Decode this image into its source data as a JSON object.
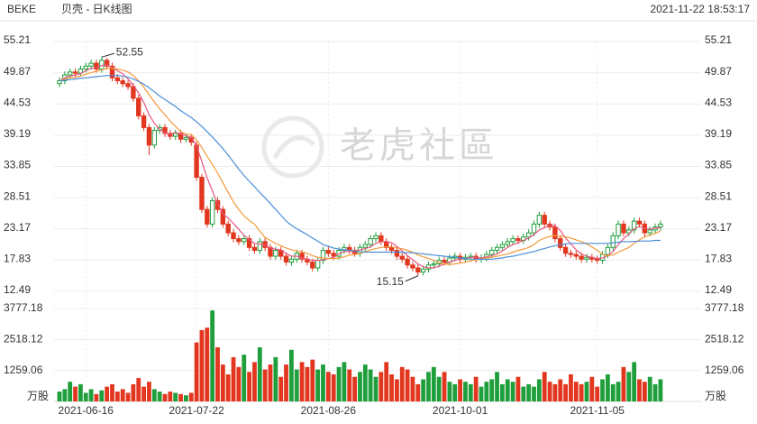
{
  "chart_data": {
    "type": "candlestick",
    "symbol": "BEKE",
    "title": "贝壳 - 日K线图",
    "timestamp": "2021-11-22 18:53:17",
    "watermark": "老虎社區",
    "categories": [
      null,
      null,
      null,
      null,
      null,
      "2021-06-16",
      null,
      null,
      null,
      null,
      null,
      null,
      null,
      null,
      null,
      null,
      null,
      null,
      null,
      null,
      null,
      null,
      null,
      null,
      null,
      null,
      "2021-07-22",
      null,
      null,
      null,
      null,
      null,
      null,
      null,
      null,
      null,
      null,
      null,
      null,
      null,
      null,
      null,
      null,
      null,
      null,
      null,
      null,
      null,
      null,
      null,
      null,
      "2021-08-26",
      null,
      null,
      null,
      null,
      null,
      null,
      null,
      null,
      null,
      null,
      null,
      null,
      null,
      null,
      null,
      null,
      null,
      null,
      null,
      null,
      null,
      null,
      null,
      null,
      "2021-10-01",
      null,
      null,
      null,
      null,
      null,
      null,
      null,
      null,
      null,
      null,
      null,
      null,
      null,
      null,
      null,
      null,
      null,
      null,
      null,
      null,
      null,
      null,
      null,
      null,
      null,
      "2021-11-05",
      null,
      null,
      null,
      null,
      null,
      null,
      null,
      null,
      null,
      null,
      null,
      null
    ],
    "open": [
      48,
      48.5,
      49.5,
      50,
      49.8,
      50.5,
      51,
      51.5,
      50.5,
      52,
      51,
      49,
      48.5,
      48,
      47.5,
      45.5,
      42.5,
      40.5,
      37.5,
      40,
      40.5,
      39.5,
      39,
      39.5,
      38.5,
      38.8,
      37.5,
      32,
      26.5,
      24,
      28,
      26.5,
      24,
      22.5,
      21.5,
      21,
      21.5,
      20,
      19.5,
      21,
      20,
      18.5,
      19.5,
      18.5,
      17.5,
      18,
      19,
      18,
      17.5,
      16.5,
      17.8,
      19.5,
      19,
      18.5,
      19.5,
      20,
      19.5,
      19,
      20,
      20.5,
      21.5,
      22,
      21,
      20,
      19.5,
      18.5,
      18,
      17,
      16.5,
      15.8,
      16.3,
      17,
      17.2,
      17.8,
      17.5,
      18.2,
      18.5,
      18,
      18.3,
      18.5,
      18,
      18.2,
      18.8,
      19.5,
      20,
      20.5,
      21,
      21.5,
      21.2,
      21.8,
      22.5,
      24,
      25.5,
      24,
      23.5,
      21.5,
      20,
      19,
      18.8,
      18.5,
      18,
      18.3,
      18,
      17.8,
      18.8,
      20,
      22,
      24,
      22.5,
      23,
      24.5,
      24,
      22.5,
      23,
      23.5
    ],
    "high": [
      49.1,
      50.1,
      50.6,
      50.6,
      51.1,
      51.6,
      52.1,
      52.1,
      52.55,
      52.4,
      51.6,
      49.6,
      49.1,
      48.6,
      48.1,
      46.1,
      43.1,
      41.1,
      40.6,
      41.1,
      41.1,
      40.1,
      40.1,
      40.1,
      39.4,
      39.4,
      38.1,
      32.6,
      27.1,
      28.6,
      28.6,
      27.1,
      24.6,
      23.1,
      22.1,
      22.1,
      22.1,
      20.6,
      21.6,
      21.6,
      20.6,
      20.1,
      20.1,
      19.1,
      18.6,
      19.6,
      19.6,
      18.6,
      18.1,
      18.4,
      20.1,
      20.1,
      19.6,
      20.1,
      20.6,
      20.6,
      20.1,
      20.6,
      21.1,
      22.1,
      22.6,
      22.6,
      21.6,
      20.6,
      20.1,
      19.1,
      18.6,
      17.6,
      17.1,
      16.9,
      17.6,
      17.8,
      18.4,
      18.4,
      18.8,
      19.1,
      19.1,
      18.9,
      19.1,
      19.1,
      18.8,
      19.4,
      20.1,
      20.6,
      21.1,
      21.6,
      22.1,
      22.1,
      22.4,
      23.1,
      24.6,
      26.1,
      26.1,
      24.6,
      24.1,
      22.1,
      20.6,
      19.6,
      19.4,
      19.1,
      18.9,
      18.9,
      18.6,
      19.4,
      20.6,
      22.6,
      24.6,
      24.6,
      23.6,
      25.1,
      25.1,
      24.6,
      23.6,
      24.1,
      24.6
    ],
    "low": [
      47.4,
      47.9,
      48.9,
      49.2,
      49.2,
      49.9,
      50.4,
      49.9,
      49.9,
      50.4,
      48.4,
      47.9,
      47.4,
      46.9,
      44.9,
      41.9,
      39.9,
      35.8,
      36.9,
      39.4,
      38.9,
      38.4,
      38.4,
      37.9,
      37.9,
      37.4,
      31.4,
      25.9,
      23.4,
      23.4,
      25.9,
      23.4,
      21.9,
      20.9,
      20.4,
      20.4,
      19.4,
      18.9,
      18.9,
      19.4,
      17.9,
      17.9,
      17.9,
      16.9,
      16.9,
      17.4,
      17.4,
      16.9,
      15.9,
      15.9,
      17.2,
      18.4,
      17.9,
      17.9,
      18.9,
      18.9,
      18.4,
      18.4,
      19.4,
      19.9,
      20.9,
      20.4,
      19.4,
      18.9,
      17.9,
      17.4,
      16.4,
      15.9,
      15.15,
      15.2,
      15.7,
      16.4,
      16.6,
      16.9,
      16.9,
      17.6,
      17.4,
      17.4,
      17.7,
      17.4,
      17.4,
      17.6,
      18.2,
      18.9,
      19.4,
      19.9,
      20.4,
      20.6,
      20.6,
      21.2,
      21.9,
      23.4,
      23.4,
      22.9,
      20.9,
      19.4,
      18.4,
      18.2,
      17.9,
      17.4,
      17.4,
      17.4,
      17.2,
      17.2,
      18.2,
      19.4,
      21.4,
      21.9,
      21.9,
      22.4,
      23.4,
      21.9,
      21.9,
      22.4,
      22.9
    ],
    "close": [
      48.5,
      49.5,
      50,
      49.8,
      50.5,
      51,
      51.5,
      50.5,
      52,
      51,
      49,
      48.5,
      48,
      47.5,
      45.5,
      42.5,
      40.5,
      37.5,
      40,
      40.5,
      39.5,
      39,
      39.5,
      38.5,
      38.8,
      38,
      32,
      26.5,
      24,
      28,
      26.5,
      24,
      22.5,
      21.5,
      21,
      21.5,
      20,
      19.5,
      21,
      20,
      18.5,
      19.5,
      18.5,
      17.5,
      18,
      19,
      18,
      17.5,
      16.5,
      17.8,
      19.5,
      19,
      18.5,
      19.5,
      20,
      19.5,
      19,
      20,
      20.5,
      21.5,
      22,
      21,
      20,
      19.5,
      18.5,
      18,
      17,
      16.5,
      15.8,
      16.3,
      17,
      17.2,
      17.8,
      17.5,
      18.2,
      18.5,
      18,
      18.3,
      18.5,
      18,
      18.2,
      18.8,
      19.5,
      20,
      20.5,
      21,
      21.5,
      21.2,
      21.8,
      22.5,
      24,
      25.5,
      24,
      23.5,
      21.5,
      20,
      19,
      18.8,
      18.5,
      18,
      18.3,
      18,
      17.8,
      18.8,
      20,
      22,
      24,
      22.5,
      23,
      24.5,
      24,
      22.5,
      23,
      23.5,
      24
    ],
    "volume": [
      400,
      500,
      800,
      600,
      700,
      350,
      500,
      300,
      450,
      600,
      700,
      400,
      500,
      350,
      700,
      950,
      600,
      800,
      500,
      400,
      300,
      400,
      350,
      300,
      250,
      350,
      2400,
      2900,
      3000,
      3700,
      2200,
      1500,
      1100,
      1800,
      1400,
      1900,
      1200,
      1600,
      2200,
      1300,
      1500,
      1800,
      1000,
      1500,
      2100,
      1300,
      1600,
      1400,
      1700,
      1300,
      1500,
      1200,
      1100,
      1400,
      1600,
      1300,
      1000,
      1200,
      1500,
      1300,
      1000,
      1200,
      1600,
      1100,
      900,
      1400,
      1300,
      1000,
      700,
      900,
      1200,
      1400,
      1000,
      1200,
      800,
      700,
      900,
      800,
      700,
      1000,
      600,
      800,
      900,
      1200,
      700,
      900,
      800,
      1000,
      600,
      700,
      600,
      900,
      1200,
      800,
      700,
      900,
      700,
      1100,
      800,
      700,
      800,
      1000,
      600,
      900,
      1100,
      700,
      800,
      1400,
      1200,
      1600,
      900,
      800,
      1000,
      700,
      900
    ],
    "up_color": "#1f9e3c",
    "down_color": "#e2361f",
    "ma_lines": [
      {
        "color": "#e8577f",
        "values": [
          48.5,
          49,
          49.3,
          49.5,
          49.7,
          50.2,
          50.6,
          50.7,
          51.1,
          51.2,
          50.8,
          50.2,
          49.7,
          48.8,
          47.7,
          46.4,
          44.8,
          42.7,
          41.2,
          40.2,
          39.6,
          39.3,
          39.7,
          39.4,
          39.1,
          38.8,
          37.4,
          34.7,
          31.9,
          29.7,
          27.4,
          25.8,
          25,
          24.1,
          23.1,
          22.1,
          21.3,
          20.7,
          20.6,
          20.4,
          19.9,
          19.7,
          19.6,
          19,
          18.5,
          18.5,
          18.2,
          18,
          17.8,
          17.8,
          17.9,
          18.1,
          18.3,
          18.9,
          19.3,
          19.3,
          19.3,
          19.6,
          19.8,
          20.1,
          20.7,
          21,
          21,
          20.8,
          20.2,
          19.4,
          18.6,
          17.9,
          17.2,
          16.7,
          16.5,
          16.5,
          16.8,
          17.2,
          17.5,
          17.8,
          18,
          18.1,
          18.3,
          18.3,
          18.2,
          18.4,
          18.6,
          18.9,
          19.4,
          20,
          20.5,
          20.8,
          21.2,
          21.6,
          22.2,
          23,
          23.4,
          23.8,
          23.7,
          22.9,
          21.6,
          20.6,
          19.6,
          18.9,
          18.5,
          18.3,
          18.1,
          18.2,
          18.6,
          19.3,
          20.5,
          21.5,
          22.3,
          23.2,
          23.6,
          23.3,
          23.1,
          23.3,
          23.4
        ]
      },
      {
        "color": "#f39a3a",
        "values": [
          48.5,
          48.8,
          49,
          49.1,
          49.3,
          49.6,
          49.9,
          50.1,
          50.4,
          50.6,
          50.6,
          50.5,
          50.3,
          50,
          49.4,
          48.5,
          47.4,
          46.1,
          44.9,
          43.7,
          42.7,
          41.6,
          40.7,
          39.8,
          39.4,
          39.3,
          38.4,
          37.1,
          35.6,
          34.2,
          32.7,
          31.1,
          29.4,
          27.8,
          26.5,
          25.4,
          24.6,
          24,
          22.8,
          21.7,
          21.2,
          20.7,
          20.3,
          19.9,
          19.6,
          19.4,
          19.2,
          19,
          18.6,
          18.3,
          18.2,
          18.1,
          18.1,
          18.2,
          18.4,
          18.7,
          18.8,
          19,
          19.3,
          19.6,
          19.8,
          20,
          20.1,
          20.1,
          19.9,
          19.8,
          19.5,
          19.2,
          18.7,
          18.4,
          18.1,
          17.8,
          17.4,
          17.2,
          17.1,
          17.2,
          17.3,
          17.5,
          17.7,
          17.9,
          18,
          18.2,
          18.3,
          18.5,
          18.7,
          18.9,
          19.2,
          19.5,
          19.7,
          20,
          20.5,
          21.2,
          21.6,
          21.9,
          22,
          21.9,
          21.8,
          21.6,
          21.3,
          21,
          20.6,
          20.1,
          19.5,
          18.8,
          18.6,
          18.7,
          19.2,
          19.6,
          20,
          20.7,
          21.3,
          21.8,
          22.1,
          22.4,
          22.8
        ]
      },
      {
        "color": "#4b8fd8",
        "values": [
          48.5,
          48.6,
          48.7,
          48.8,
          48.9,
          49,
          49.1,
          49.2,
          49.3,
          49.4,
          49.4,
          49.4,
          49.3,
          49.1,
          48.8,
          48.4,
          47.9,
          47.3,
          46.6,
          45.9,
          45.3,
          44.7,
          44.1,
          43.4,
          42.8,
          42.2,
          41.5,
          40.7,
          39.8,
          38.9,
          37.9,
          36.9,
          35.8,
          34.6,
          33.4,
          32.3,
          31.3,
          30.4,
          29.4,
          28.5,
          27.5,
          26.5,
          25.5,
          24.5,
          23.8,
          23.2,
          22.7,
          22.2,
          21.6,
          21.1,
          20.5,
          20.2,
          19.9,
          19.7,
          19.6,
          19.5,
          19.4,
          19.3,
          19.2,
          19.2,
          19.2,
          19.2,
          19.2,
          19.2,
          19.2,
          19.2,
          19.1,
          19.1,
          19,
          18.9,
          18.8,
          18.7,
          18.6,
          18.5,
          18.4,
          18.3,
          18.2,
          18.1,
          18,
          18,
          18,
          18,
          18,
          18.1,
          18.2,
          18.4,
          18.5,
          18.7,
          18.9,
          19.1,
          19.3,
          19.6,
          19.8,
          20.1,
          20.3,
          20.5,
          20.6,
          20.7,
          20.7,
          20.7,
          20.7,
          20.7,
          20.7,
          20.7,
          20.7,
          20.8,
          20.9,
          21,
          21,
          21,
          21.1,
          21.1,
          21.1,
          21.2,
          21.2
        ]
      }
    ],
    "ylim": [
      12.49,
      55.21
    ],
    "yticks": [
      12.49,
      17.83,
      23.17,
      28.51,
      33.85,
      39.19,
      44.53,
      49.87,
      55.21
    ],
    "volume_ylim": [
      0,
      3777.18
    ],
    "volume_ticks": [
      1259.06,
      2518.12,
      3777.18
    ],
    "volume_unit": "万股",
    "grid": true
  }
}
